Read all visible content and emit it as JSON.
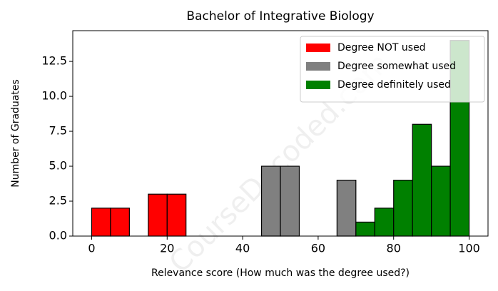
{
  "chart_data": {
    "type": "histogram",
    "title": "Bachelor of Integrative Biology",
    "xlabel": "Relevance score (How much was the degree used?)",
    "ylabel": "Number of Graduates",
    "watermark": "CourseDecoded.com",
    "series": [
      {
        "name": "Degree NOT used",
        "color": "#ff0000",
        "bins": [
          0,
          5,
          10,
          15,
          20,
          25
        ],
        "values": [
          2,
          2,
          0,
          3,
          3
        ]
      },
      {
        "name": "Degree somewhat used",
        "color": "#808080",
        "bins": [
          45,
          50,
          55,
          60,
          65,
          70
        ],
        "values": [
          5,
          5,
          0,
          0,
          4
        ]
      },
      {
        "name": "Degree definitely used",
        "color": "#008000",
        "bins": [
          70,
          75,
          80,
          85,
          90,
          95,
          100
        ],
        "values": [
          1,
          2,
          4,
          8,
          5,
          14
        ]
      }
    ],
    "xlim": [
      -5,
      105
    ],
    "ylim": [
      0,
      14.7
    ],
    "xticks": [
      0,
      20,
      40,
      60,
      80,
      100
    ],
    "yticks": [
      {
        "value": 0,
        "label": "0.0"
      },
      2.5,
      {
        "value": 5,
        "label": "5.0"
      },
      7.5,
      {
        "value": 10,
        "label": "10.0"
      },
      12.5
    ],
    "legend": "upper right"
  }
}
